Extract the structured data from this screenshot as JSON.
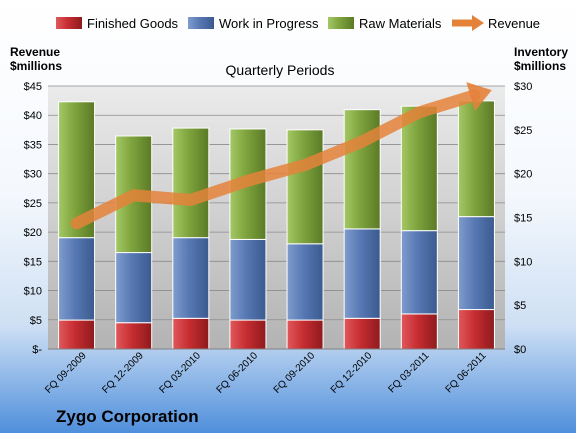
{
  "chart_data": {
    "type": "bar",
    "title": "Quarterly Periods",
    "company": "Zygo Corporation",
    "left_axis": {
      "label_line1": "Revenue",
      "label_line2": "$millions",
      "ylim": [
        0,
        45
      ],
      "ticks": [
        0,
        5,
        10,
        15,
        20,
        25,
        30,
        35,
        40,
        45
      ],
      "tick_labels": [
        "$-",
        "$5",
        "$10",
        "$15",
        "$20",
        "$25",
        "$30",
        "$35",
        "$40",
        "$45"
      ]
    },
    "right_axis": {
      "label_line1": "Inventory",
      "label_line2": "$millions",
      "ylim": [
        0,
        30
      ],
      "ticks": [
        0,
        5,
        10,
        15,
        20,
        25,
        30
      ],
      "tick_labels": [
        "$0",
        "$5",
        "$10",
        "$15",
        "$20",
        "$25",
        "$30"
      ]
    },
    "categories": [
      "FQ 09-2009",
      "FQ 12-2009",
      "FQ 03-2010",
      "FQ 06-2010",
      "FQ 09-2010",
      "FQ 12-2010",
      "FQ 03-2011",
      "FQ 06-2011"
    ],
    "stack_series": [
      {
        "name": "Finished Goods",
        "color": "#c0282d",
        "values": [
          3.3,
          3.0,
          3.5,
          3.3,
          3.3,
          3.5,
          4.0,
          4.5
        ]
      },
      {
        "name": "Work in Progress",
        "color": "#4f74b2",
        "values": [
          9.4,
          8.0,
          9.2,
          9.2,
          8.7,
          10.2,
          9.5,
          10.6
        ]
      },
      {
        "name": "Raw Materials",
        "color": "#7ba33b",
        "values": [
          15.5,
          13.3,
          12.5,
          12.6,
          13.0,
          13.6,
          14.2,
          13.2
        ]
      }
    ],
    "line_series": {
      "name": "Revenue",
      "color": "#e4823a",
      "values": [
        21.5,
        26.3,
        25.5,
        28.8,
        31.5,
        35.5,
        40.5,
        43.5
      ]
    },
    "legend": [
      "Finished Goods",
      "Work in Progress",
      "Raw Materials",
      "Revenue"
    ],
    "legend_position": "top",
    "grid": true
  }
}
